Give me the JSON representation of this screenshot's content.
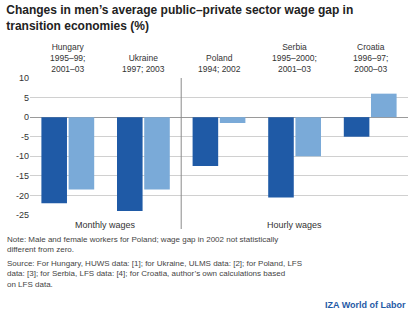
{
  "chart_data": {
    "type": "bar",
    "title": "Changes in men’s average public–private sector wage gap in transition economies (%)",
    "categories": [
      "Hungary",
      "Ukraine",
      "Poland",
      "Serbia",
      "Croatia"
    ],
    "periods": [
      "1995–99; 2001–03",
      "1997; 2003",
      "1994; 2002",
      "1995–2000; 2001–03",
      "1996–97; 2000–03"
    ],
    "series": [
      {
        "color": "#1f5aa6",
        "values": [
          -22,
          -24,
          -12.5,
          -20.5,
          -5
        ]
      },
      {
        "color": "#7aaad8",
        "values": [
          -18.5,
          -18.5,
          -1.5,
          -10,
          6
        ]
      }
    ],
    "wage_groups": [
      {
        "label": "Monthly wages",
        "categories": [
          "Hungary",
          "Ukraine"
        ]
      },
      {
        "label": "Hourly wages",
        "categories": [
          "Poland",
          "Serbia",
          "Croatia"
        ]
      }
    ],
    "ylim": [
      -25,
      10
    ],
    "yticks": [
      -25,
      -20,
      -15,
      -10,
      -5,
      0,
      5,
      10
    ],
    "grid": true,
    "note": "Note: Male and female workers for Poland; wage gap in 2002 not statistically different from zero.",
    "source": "Source: For Hungary, HUWS data: [1]; for Ukraine, ULMS data: [2]; for Poland, LFS data: [3]; for Serbia, LFS data: [4]; for Croatia, author’s own calculations based on LFS data.",
    "footer": "IZA World of Labor"
  }
}
